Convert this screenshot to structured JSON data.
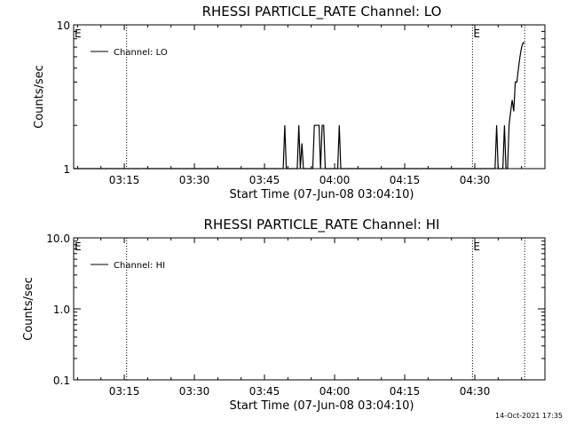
{
  "chart_data": [
    {
      "type": "line",
      "title": "RHESSI PARTICLE_RATE Channel: LO",
      "xlabel": "Start Time (07-Jun-08 03:04:10)",
      "ylabel": "Counts/sec",
      "x_ticks": [
        "03:15",
        "03:30",
        "03:45",
        "04:00",
        "04:15",
        "04:30"
      ],
      "y_scale": "log",
      "ylim": [
        1,
        10
      ],
      "y_ticks": [
        "1",
        "10"
      ],
      "xlim": [
        "03:04:10",
        "04:45:00"
      ],
      "legend_position": "top-left",
      "series": [
        {
          "name": "Channel: LO",
          "color": "#000000",
          "points": [
            [
              "03:49:00",
              1
            ],
            [
              "03:49:20",
              2
            ],
            [
              "03:49:40",
              1
            ],
            [
              "03:52:00",
              1
            ],
            [
              "03:52:20",
              2
            ],
            [
              "03:52:40",
              1
            ],
            [
              "03:53:00",
              1.5
            ],
            [
              "03:53:20",
              1
            ],
            [
              "03:55:20",
              1
            ],
            [
              "03:55:40",
              2
            ],
            [
              "03:56:40",
              2
            ],
            [
              "03:57:00",
              1
            ],
            [
              "03:57:20",
              2
            ],
            [
              "03:57:40",
              2
            ],
            [
              "03:58:00",
              1
            ],
            [
              "04:00:40",
              1
            ],
            [
              "04:01:00",
              2
            ],
            [
              "04:01:20",
              1
            ],
            [
              "04:34:20",
              1
            ],
            [
              "04:34:40",
              2
            ],
            [
              "04:35:00",
              1
            ],
            [
              "04:36:00",
              1
            ],
            [
              "04:36:20",
              2
            ],
            [
              "04:36:40",
              1
            ],
            [
              "04:37:00",
              1
            ],
            [
              "04:37:20",
              2
            ],
            [
              "04:37:40",
              2.5
            ],
            [
              "04:38:00",
              3
            ],
            [
              "04:38:20",
              2.5
            ],
            [
              "04:38:40",
              4
            ],
            [
              "04:39:00",
              4
            ],
            [
              "04:39:20",
              5
            ],
            [
              "04:39:40",
              6
            ],
            [
              "04:40:00",
              7
            ],
            [
              "04:40:20",
              7.5
            ],
            [
              "04:40:40",
              7.5
            ]
          ]
        }
      ],
      "events": [
        {
          "time": "03:04:10",
          "label": "E"
        },
        {
          "time": "03:15:30",
          "label": ""
        },
        {
          "time": "04:29:30",
          "label": "E"
        },
        {
          "time": "04:40:40",
          "label": ""
        }
      ]
    },
    {
      "type": "line",
      "title": "RHESSI PARTICLE_RATE Channel: HI",
      "xlabel": "Start Time (07-Jun-08 03:04:10)",
      "ylabel": "Counts/sec",
      "x_ticks": [
        "03:15",
        "03:30",
        "03:45",
        "04:00",
        "04:15",
        "04:30"
      ],
      "y_scale": "log",
      "ylim": [
        0.1,
        10
      ],
      "y_ticks": [
        "0.1",
        "1.0",
        "10.0"
      ],
      "xlim": [
        "03:04:10",
        "04:45:00"
      ],
      "legend_position": "top-left",
      "series": [
        {
          "name": "Channel: HI",
          "color": "#000000",
          "points": []
        }
      ],
      "events": [
        {
          "time": "03:04:10",
          "label": "E"
        },
        {
          "time": "03:15:30",
          "label": ""
        },
        {
          "time": "04:29:30",
          "label": "E"
        },
        {
          "time": "04:40:40",
          "label": ""
        }
      ]
    }
  ],
  "footer": {
    "timestamp": "14-Oct-2021 17:35"
  }
}
